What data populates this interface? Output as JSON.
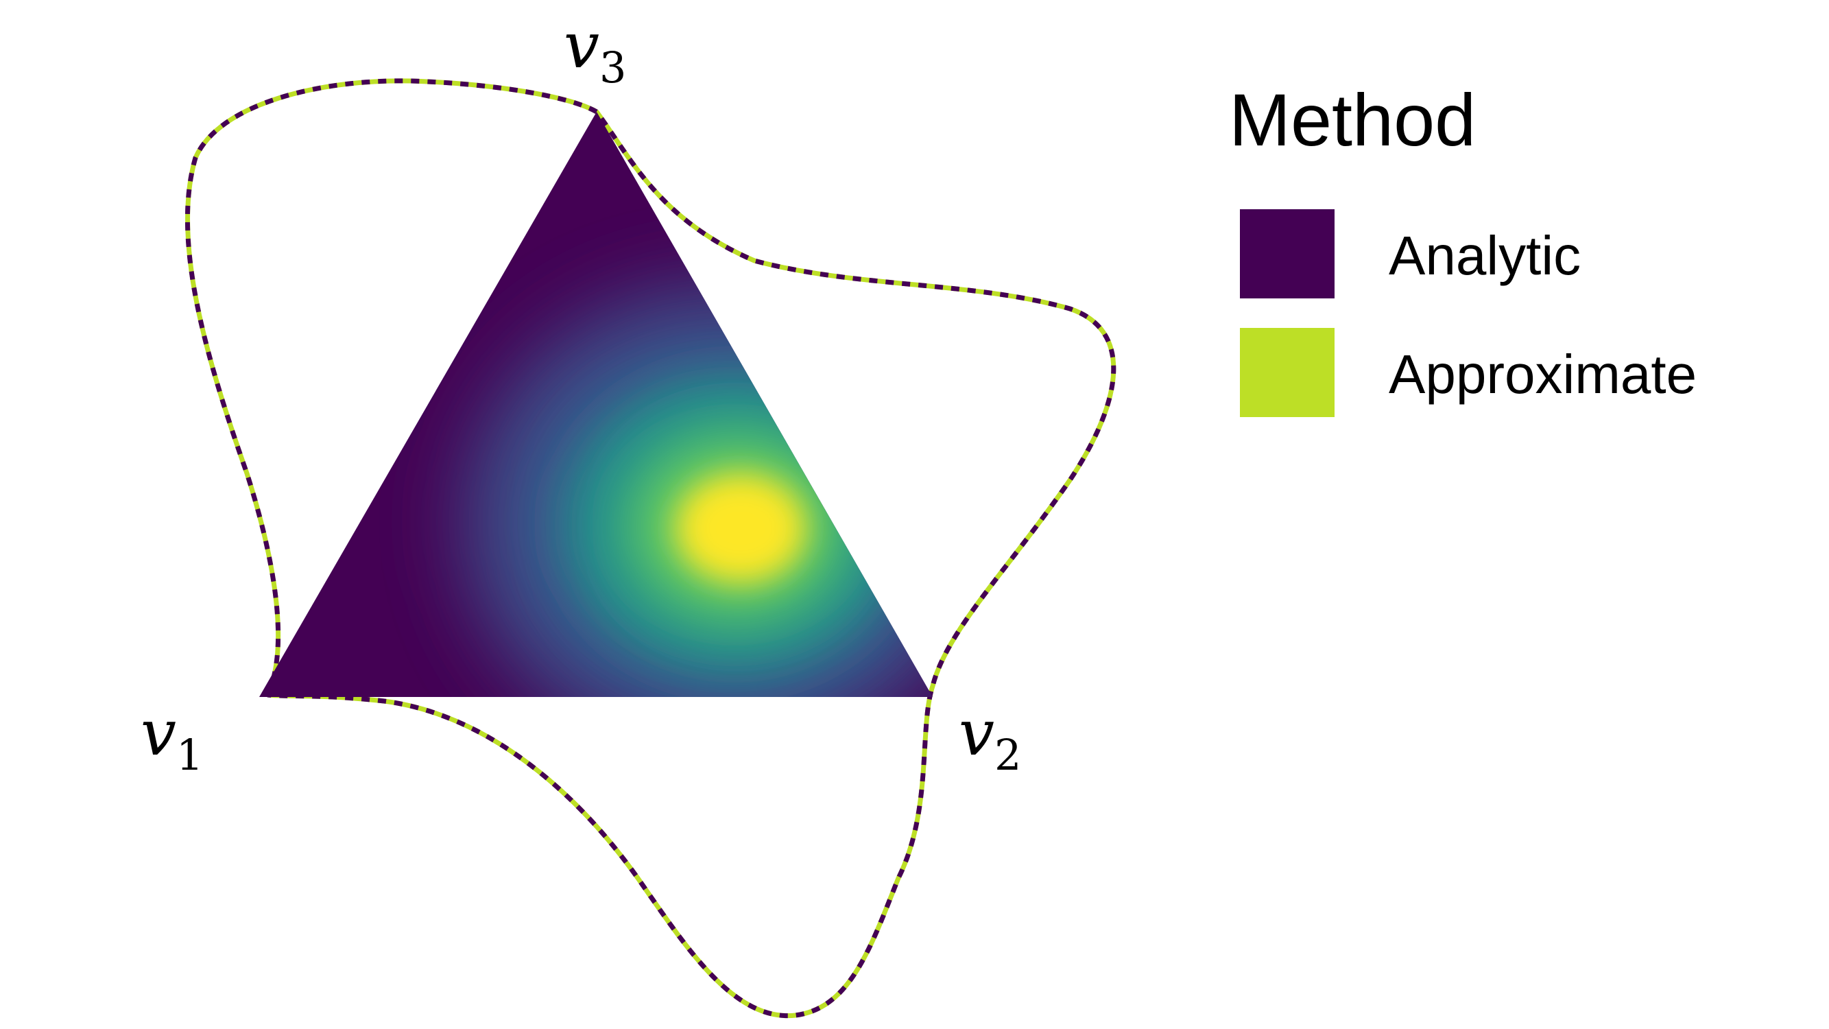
{
  "vertices": {
    "v1": {
      "letter": "v",
      "sub": "1"
    },
    "v2": {
      "letter": "v",
      "sub": "2"
    },
    "v3": {
      "letter": "v",
      "sub": "3"
    }
  },
  "legend": {
    "title": "Method",
    "items": [
      {
        "label": "Analytic",
        "color": "#440154"
      },
      {
        "label": "Approximate",
        "color": "#bddf26"
      }
    ]
  },
  "colors": {
    "colormap": "viridis",
    "curve_dash_a": "#440154",
    "curve_dash_b": "#bddf26"
  }
}
